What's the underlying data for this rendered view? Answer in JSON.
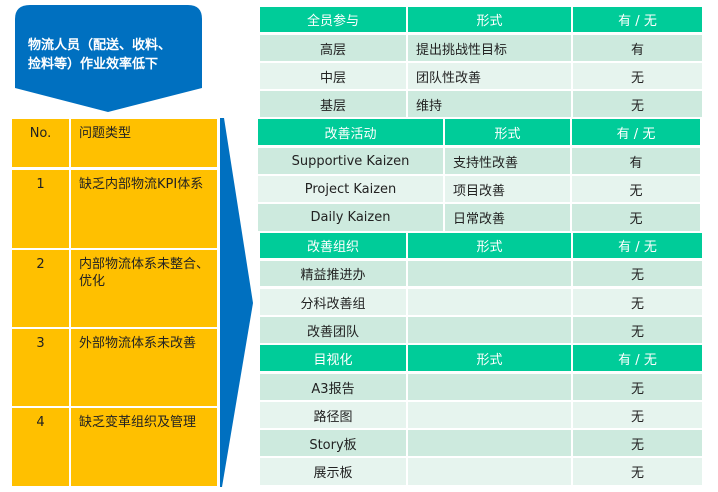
{
  "callout": {
    "text_line1": "物流人员（配送、收料、",
    "text_line2": "捡料等）作业效率低下",
    "color": "#0070c0"
  },
  "problems": {
    "header": {
      "no": "No.",
      "type": "问题类型"
    },
    "rows": [
      {
        "no": "1",
        "type": "缺乏内部物流KPI体系"
      },
      {
        "no": "2",
        "type": "内部物流体系未整合、优化"
      },
      {
        "no": "3",
        "type": "外部物流体系未改善"
      },
      {
        "no": "4",
        "type": "缺乏变革组织及管理"
      }
    ],
    "color": "#ffc000"
  },
  "tables": [
    {
      "header": [
        "全员参与",
        "形式",
        "有 / 无"
      ],
      "rows": [
        [
          "高层",
          "提出挑战性目标",
          "有"
        ],
        [
          "中层",
          "团队性改善",
          "无"
        ],
        [
          "基层",
          "维持",
          "无"
        ]
      ]
    },
    {
      "header": [
        "改善活动",
        "形式",
        "有 / 无"
      ],
      "rows": [
        [
          "Supportive Kaizen",
          "支持性改善",
          "有"
        ],
        [
          "Project Kaizen",
          "项目改善",
          "无"
        ],
        [
          "Daily Kaizen",
          "日常改善",
          "无"
        ]
      ]
    },
    {
      "header": [
        "改善组织",
        "形式",
        "有 / 无"
      ],
      "rows": [
        [
          "精益推进办",
          "",
          "无"
        ],
        [
          "分科改善组",
          "",
          "无"
        ],
        [
          "改善团队",
          "",
          "无"
        ]
      ]
    },
    {
      "header": [
        "目视化",
        "形式",
        "有 / 无"
      ],
      "rows": [
        [
          "A3报告",
          "",
          "无"
        ],
        [
          "路径图",
          "",
          "无"
        ],
        [
          "Story板",
          "",
          "无"
        ],
        [
          "展示板",
          "",
          "无"
        ]
      ]
    }
  ],
  "colors": {
    "header": "#00cc99",
    "row_dark": "#cdeade",
    "row_light": "#e6f4ee",
    "arrow": "#0070c0"
  }
}
